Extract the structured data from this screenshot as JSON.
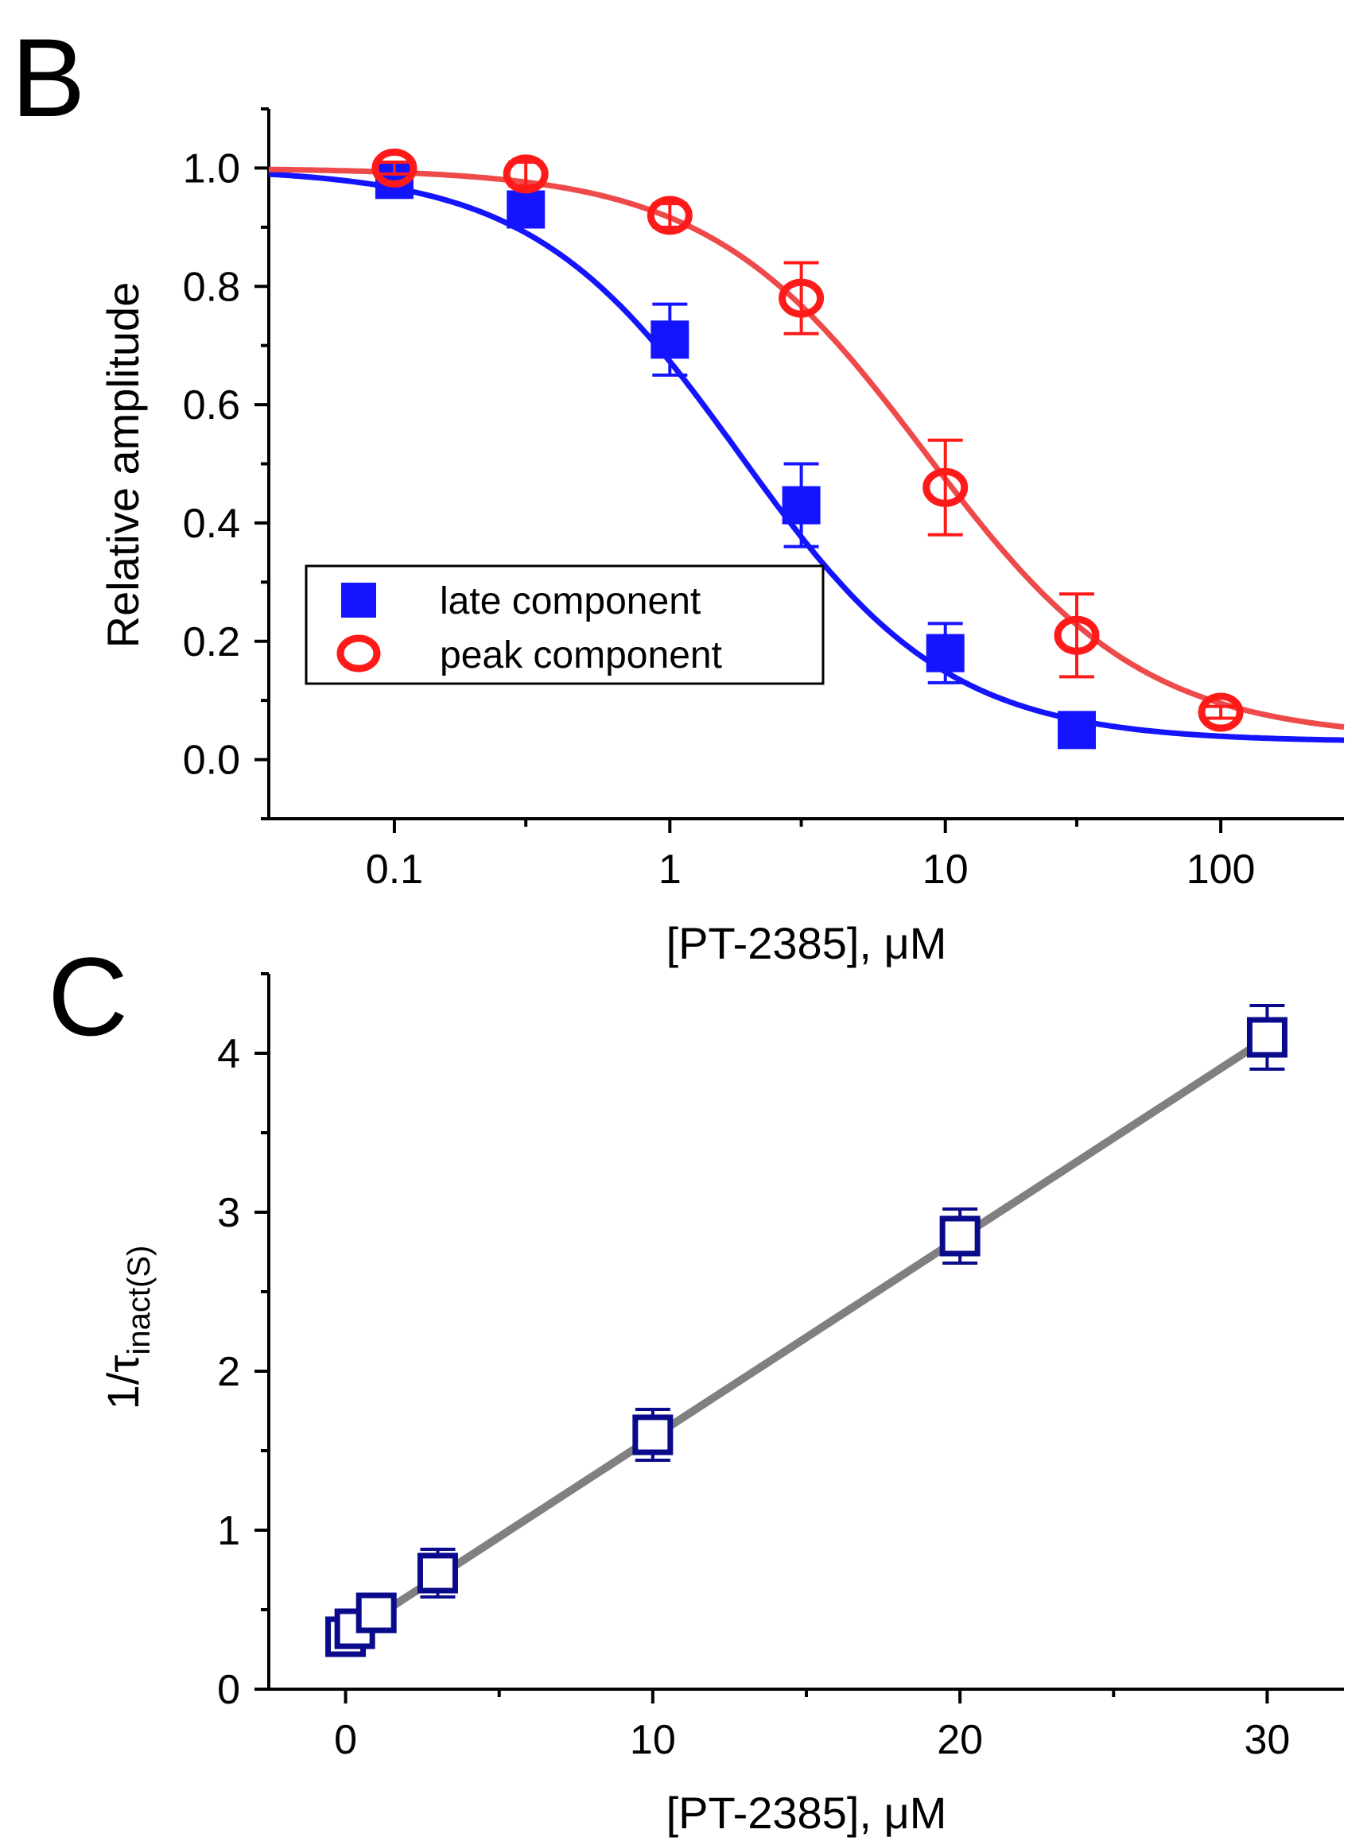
{
  "chart_data": [
    {
      "panel_label": "B",
      "type": "scatter",
      "xscale": "log",
      "xlim": [
        0.035,
        280
      ],
      "ylim": [
        -0.1,
        1.1
      ],
      "xlabel": "[PT-2385], μM",
      "ylabel": "Relative amplitude",
      "xticks": [
        {
          "value": 0.1,
          "label": "0.1"
        },
        {
          "value": 1,
          "label": "1"
        },
        {
          "value": 10,
          "label": "10"
        },
        {
          "value": 100,
          "label": "100"
        }
      ],
      "yticks": [
        {
          "value": 0.0,
          "label": "0.0"
        },
        {
          "value": 0.2,
          "label": "0.2"
        },
        {
          "value": 0.4,
          "label": "0.4"
        },
        {
          "value": 0.6,
          "label": "0.6"
        },
        {
          "value": 0.8,
          "label": "0.8"
        },
        {
          "value": 1.0,
          "label": "1.0"
        }
      ],
      "legend_position": "lower-left",
      "series": [
        {
          "name": "late component",
          "marker": "filled-square",
          "color": "#1414ff",
          "x": [
            0.1,
            0.3,
            1,
            3,
            10,
            30
          ],
          "y": [
            0.98,
            0.93,
            0.71,
            0.43,
            0.18,
            0.05
          ],
          "err": [
            0.02,
            0.02,
            0.06,
            0.07,
            0.05,
            0.01
          ],
          "fit": {
            "model": "hill",
            "bottom": 0.03,
            "top": 1.0,
            "ic50": 1.8,
            "n": 1.15,
            "color": "#1414ff"
          }
        },
        {
          "name": "peak component",
          "marker": "open-circle",
          "color": "#ff1a1a",
          "x": [
            0.1,
            0.3,
            1,
            3,
            10,
            30,
            100
          ],
          "y": [
            1.0,
            0.99,
            0.92,
            0.78,
            0.46,
            0.21,
            0.08
          ],
          "err": [
            0.01,
            0.02,
            0.02,
            0.06,
            0.08,
            0.07,
            0.01
          ],
          "fit": {
            "model": "hill",
            "bottom": 0.035,
            "top": 1.0,
            "ic50": 8.5,
            "n": 1.1,
            "color": "#ee4a4a"
          }
        }
      ]
    },
    {
      "panel_label": "C",
      "type": "scatter",
      "xscale": "linear",
      "xlim": [
        -2.5,
        32.5
      ],
      "ylim": [
        0,
        4.5
      ],
      "xlabel": "[PT-2385], μM",
      "ylabel_main": "1/τ",
      "ylabel_sub": "inact(S)",
      "xticks": [
        {
          "value": 0,
          "label": "0"
        },
        {
          "value": 10,
          "label": "10"
        },
        {
          "value": 20,
          "label": "20"
        },
        {
          "value": 30,
          "label": "30"
        }
      ],
      "yticks": [
        {
          "value": 0,
          "label": "0"
        },
        {
          "value": 1,
          "label": "1"
        },
        {
          "value": 2,
          "label": "2"
        },
        {
          "value": 3,
          "label": "3"
        },
        {
          "value": 4,
          "label": "4"
        }
      ],
      "series": [
        {
          "name": "1/tau inact",
          "marker": "open-square",
          "color": "#0a0a8c",
          "x": [
            0,
            0.3,
            1,
            3,
            10,
            20,
            30
          ],
          "y": [
            0.33,
            0.38,
            0.48,
            0.73,
            1.6,
            2.85,
            4.1
          ],
          "err": [
            0.05,
            0.06,
            0.07,
            0.15,
            0.16,
            0.17,
            0.2
          ],
          "fit": {
            "model": "linear",
            "slope": 0.1255,
            "intercept": 0.33,
            "color": "#808080"
          }
        }
      ]
    }
  ]
}
